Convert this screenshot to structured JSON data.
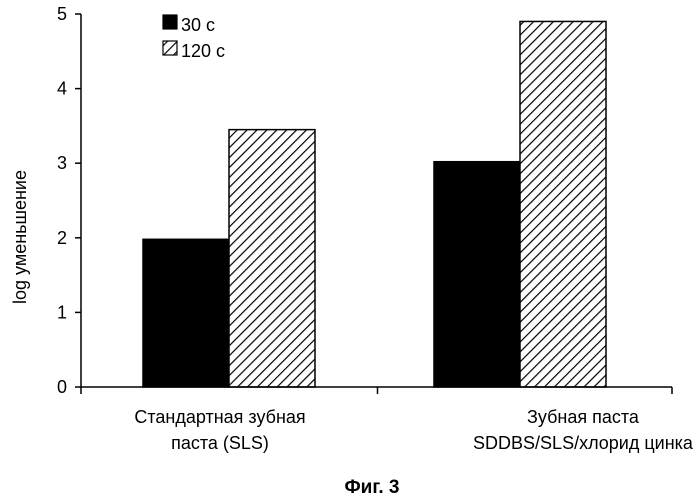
{
  "chart_data": {
    "type": "bar",
    "title": "",
    "caption": "Фиг. 3",
    "xlabel": "",
    "ylabel": "log  уменьшение",
    "ylim": [
      0,
      5
    ],
    "yticks": [
      0,
      1,
      2,
      3,
      4,
      5
    ],
    "grid": false,
    "legend_position": "top-left",
    "categories": [
      [
        "Стандартная зубная",
        "паста (SLS)"
      ],
      [
        "Зубная паста",
        "SDDBS/SLS/хлорид цинка"
      ]
    ],
    "series": [
      {
        "name": "30 с",
        "values": [
          1.98,
          3.02
        ],
        "fill": "solid",
        "color": "#000000"
      },
      {
        "name": "120 с",
        "values": [
          3.45,
          4.9
        ],
        "fill": "hatched",
        "color": "#000000"
      }
    ]
  }
}
